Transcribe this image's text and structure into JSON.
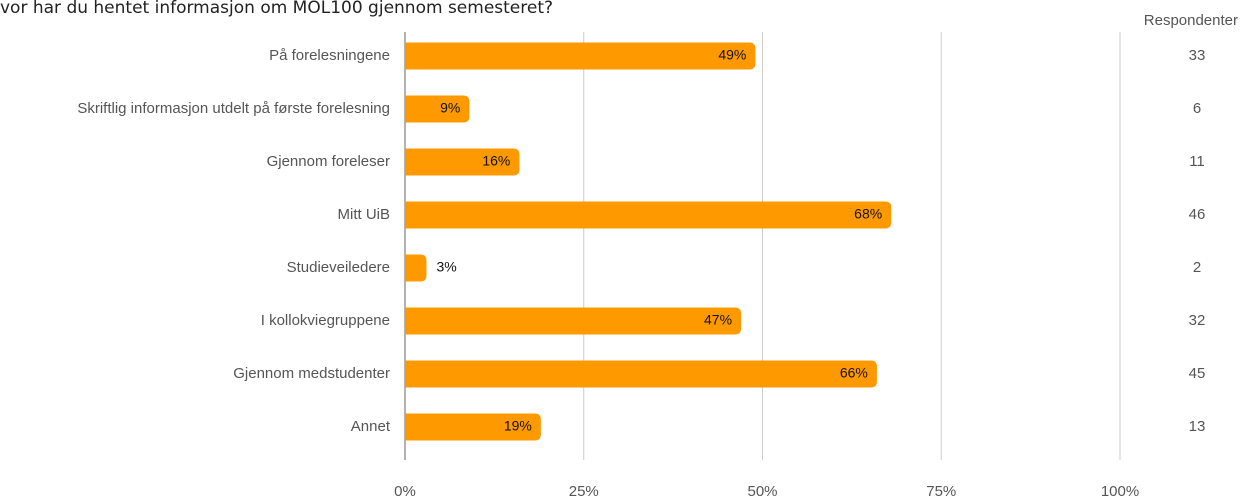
{
  "chart_data": {
    "type": "bar",
    "orientation": "horizontal",
    "title": "vor har du hentet informasjon om MOL100 gjennom semesteret?",
    "categories": [
      "På forelesningene",
      "Skriftlig informasjon utdelt på første forelesning",
      "Gjennom foreleser",
      "Mitt UiB",
      "Studieveiledere",
      "I kollokviegruppene",
      "Gjennom medstudenter",
      "Annet"
    ],
    "values": [
      49,
      9,
      16,
      68,
      3,
      47,
      66,
      19
    ],
    "value_labels": [
      "49%",
      "9%",
      "16%",
      "68%",
      "3%",
      "47%",
      "66%",
      "19%"
    ],
    "color": "#ff9900",
    "xlim": [
      0,
      100
    ],
    "xticks": [
      {
        "value": 0,
        "label": "0%"
      },
      {
        "value": 25,
        "label": "25%"
      },
      {
        "value": 50,
        "label": "50%"
      },
      {
        "value": 75,
        "label": "75%"
      },
      {
        "value": 100,
        "label": "100%"
      }
    ],
    "grid": true,
    "count_header": "Respondenter",
    "counts": [
      33,
      6,
      11,
      46,
      2,
      32,
      45,
      13
    ]
  }
}
